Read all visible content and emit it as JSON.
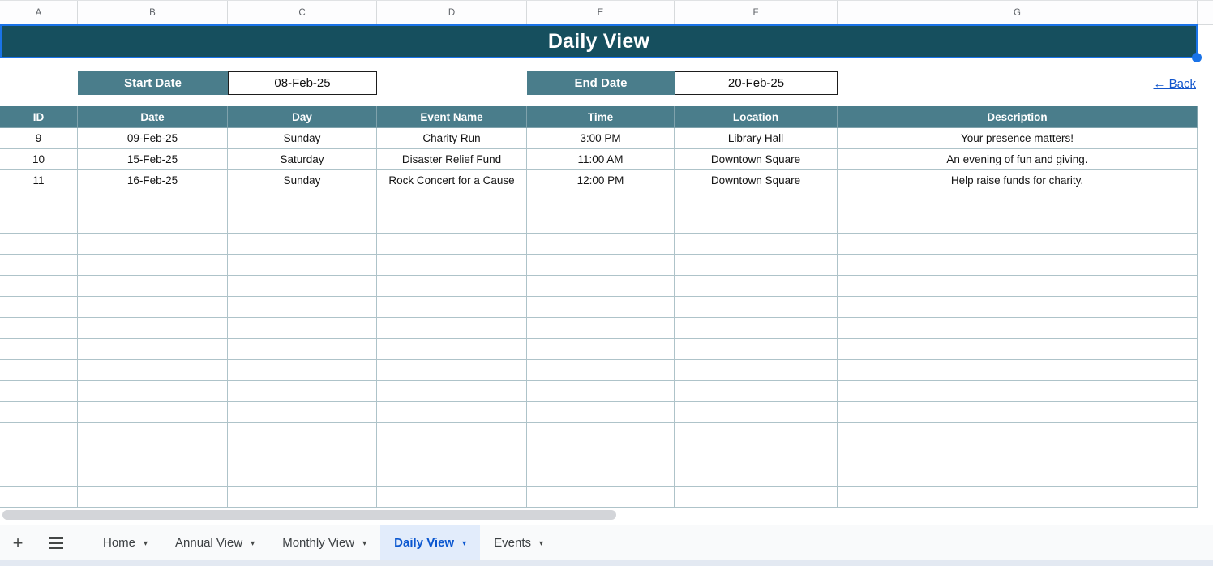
{
  "columns": {
    "letters": [
      "A",
      "B",
      "C",
      "D",
      "E",
      "F",
      "G"
    ]
  },
  "title": {
    "text": "Daily View"
  },
  "filters": {
    "start_label": "Start Date",
    "start_value": "08-Feb-25",
    "end_label": "End Date",
    "end_value": "20-Feb-25"
  },
  "back_link": {
    "label": "← Back"
  },
  "table": {
    "headers": [
      "ID",
      "Date",
      "Day",
      "Event Name",
      "Time",
      "Location",
      "Description"
    ],
    "rows": [
      [
        "9",
        "09-Feb-25",
        "Sunday",
        "Charity Run",
        "3:00 PM",
        "Library Hall",
        "Your presence matters!"
      ],
      [
        "10",
        "15-Feb-25",
        "Saturday",
        "Disaster Relief Fund",
        "11:00 AM",
        "Downtown Square",
        "An evening of fun and giving."
      ],
      [
        "11",
        "16-Feb-25",
        "Sunday",
        "Rock Concert for a Cause",
        "12:00 PM",
        "Downtown Square",
        "Help raise funds for charity."
      ]
    ],
    "empty_row_count": 15
  },
  "sheet_tabs": {
    "add_icon": "+",
    "caret_icon": "▾",
    "tabs": [
      {
        "label": "Home",
        "active": false
      },
      {
        "label": "Annual View",
        "active": false
      },
      {
        "label": "Monthly View",
        "active": false
      },
      {
        "label": "Daily View",
        "active": true
      },
      {
        "label": "Events",
        "active": false
      }
    ]
  },
  "colors": {
    "banner_bg": "#164f5e",
    "header_bg": "#4a7d8b",
    "selection_blue": "#1a73e8",
    "link_blue": "#1155cc",
    "active_tab_text": "#0b57d0",
    "grid_border": "#aec3c9"
  }
}
